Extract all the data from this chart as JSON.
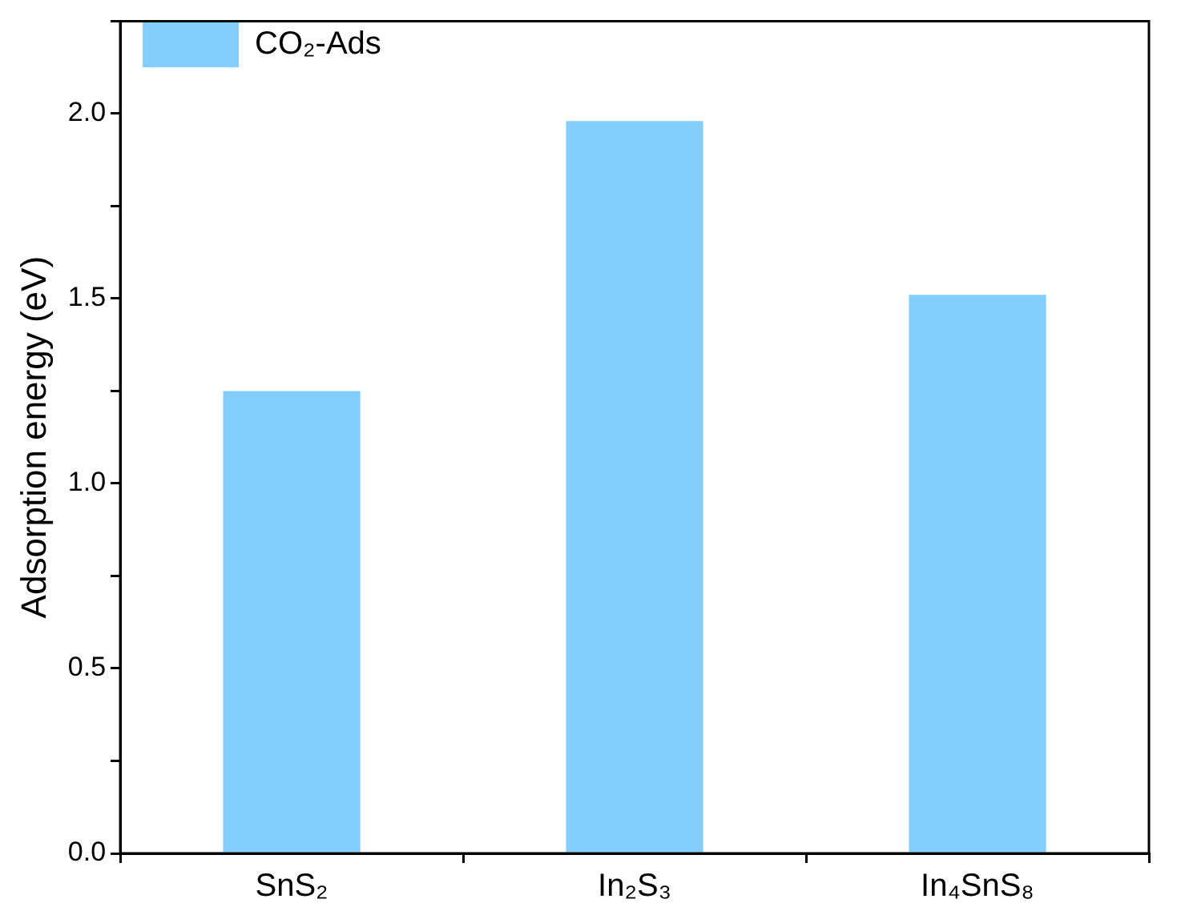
{
  "chart_data": {
    "type": "bar",
    "ylabel": "Adsorption energy (eV)",
    "categories": [
      "SnS₂",
      "In₂S₃",
      "In₄SnS₈"
    ],
    "series": [
      {
        "name": "CO₂-Ads",
        "color": "#82cffd",
        "values": [
          1.25,
          1.98,
          1.51
        ]
      }
    ],
    "ylim": [
      0,
      2.25
    ],
    "yticks": [
      {
        "value": 0,
        "label": "0.0"
      },
      {
        "value": 0.25,
        "label": null
      },
      {
        "value": 0.5,
        "label": "0.5"
      },
      {
        "value": 0.75,
        "label": null
      },
      {
        "value": 1,
        "label": "1.0"
      },
      {
        "value": 1.25,
        "label": null
      },
      {
        "value": 1.5,
        "label": "1.5"
      },
      {
        "value": 1.75,
        "label": null
      },
      {
        "value": 2,
        "label": "2.0"
      },
      {
        "value": 2.25,
        "label": null
      }
    ],
    "grid": false,
    "legend": "top left"
  }
}
